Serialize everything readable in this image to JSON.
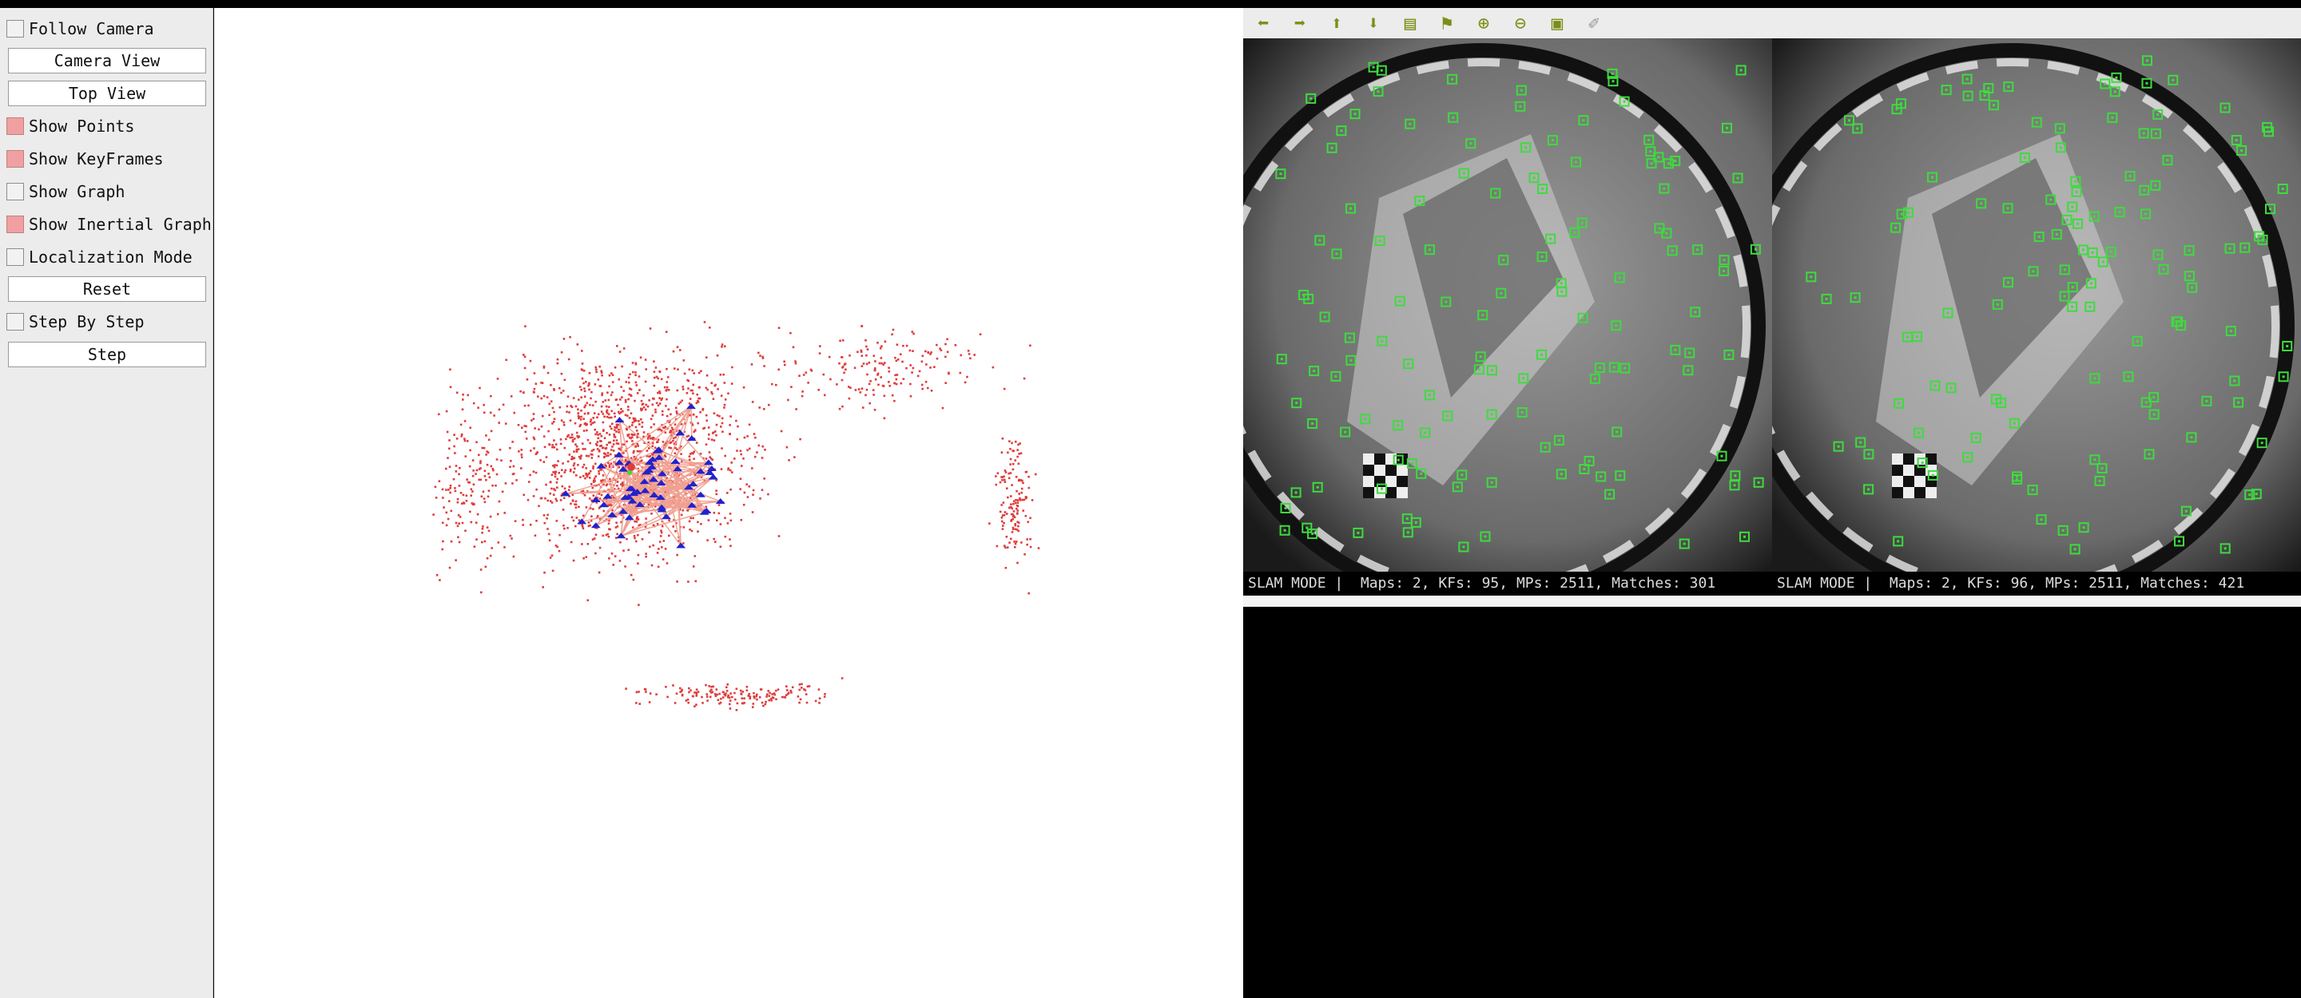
{
  "panel": {
    "follow_camera": {
      "label": "Follow Camera",
      "checked": false
    },
    "camera_view_button": "Camera View",
    "top_view_button": "Top View",
    "show_points": {
      "label": "Show Points",
      "checked": true
    },
    "show_keyframes": {
      "label": "Show KeyFrames",
      "checked": true
    },
    "show_graph": {
      "label": "Show Graph",
      "checked": false
    },
    "show_inertial_graph": {
      "label": "Show Inertial Graph",
      "checked": true
    },
    "localization_mode": {
      "label": "Localization Mode",
      "checked": false
    },
    "reset_button": "Reset",
    "step_by_step": {
      "label": "Step By Step",
      "checked": false
    },
    "step_button": "Step"
  },
  "toolbar": {
    "icons": [
      "arrow-left-icon",
      "arrow-right-icon",
      "arrow-up-icon",
      "arrow-down-icon",
      "folder-icon",
      "flag-icon",
      "zoom-in-icon",
      "zoom-out-icon",
      "save-icon",
      "pin-icon"
    ]
  },
  "frames": {
    "left_status": "SLAM MODE |  Maps: 2, KFs: 95, MPs: 2511, Matches: 301",
    "right_status": "SLAM MODE |  Maps: 2, KFs: 96, MPs: 2511, Matches: 421"
  },
  "colors": {
    "map_points": "#e03c3c",
    "keyframes": "#2222cc",
    "graph_edges": "#f0a090",
    "feature_markers": "#3ddc3d",
    "checked": "#f0a0a0"
  }
}
